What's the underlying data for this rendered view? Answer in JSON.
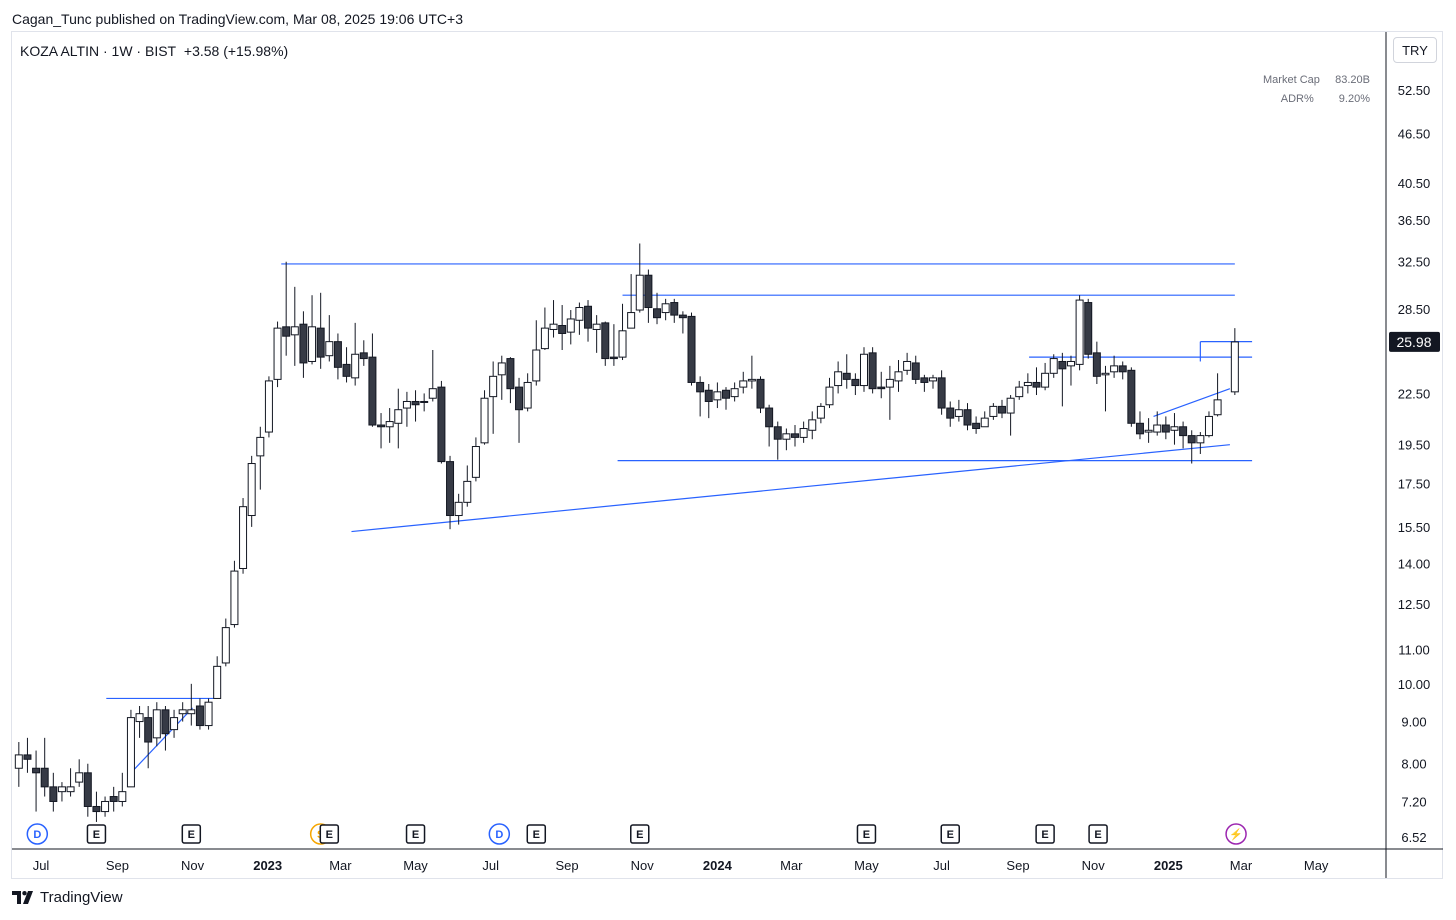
{
  "header": {
    "published": "Cagan_Tunc published on TradingView.com, Mar 08, 2025 19:06 UTC+3"
  },
  "legend": {
    "symbol": "KOZA ALTIN · 1W · BIST",
    "change": "+3.58 (+15.98%)"
  },
  "currency": "TRY",
  "stats": {
    "market_cap_label": "Market Cap",
    "market_cap_value": "83.20B",
    "adr_label": "ADR%",
    "adr_value": "9.20%"
  },
  "brand": {
    "name": "TradingView"
  },
  "colors": {
    "up_fill": "#ffffff",
    "down_fill": "#363a45",
    "candle_outline": "#131722",
    "drawing": "#2962ff",
    "price_tag_bg": "#131722"
  },
  "chart_data": {
    "type": "candlestick",
    "timeframe": "1W",
    "scale": "log",
    "y_ticks": [
      "52.50",
      "46.50",
      "40.50",
      "36.50",
      "32.50",
      "28.50",
      "22.50",
      "19.50",
      "17.50",
      "15.50",
      "14.00",
      "12.50",
      "11.00",
      "10.00",
      "9.00",
      "8.00",
      "7.20",
      "6.52"
    ],
    "last_price_label": "25.98",
    "x_ticks": [
      {
        "label": "Jul",
        "x": "2022-07-01",
        "bold": false
      },
      {
        "label": "Sep",
        "x": "2022-09-01",
        "bold": false
      },
      {
        "label": "Nov",
        "x": "2022-11-01",
        "bold": false
      },
      {
        "label": "2023",
        "x": "2023-01-01",
        "bold": true
      },
      {
        "label": "Mar",
        "x": "2023-03-01",
        "bold": false
      },
      {
        "label": "May",
        "x": "2023-05-01",
        "bold": false
      },
      {
        "label": "Jul",
        "x": "2023-07-01",
        "bold": false
      },
      {
        "label": "Sep",
        "x": "2023-09-01",
        "bold": false
      },
      {
        "label": "Nov",
        "x": "2023-11-01",
        "bold": false
      },
      {
        "label": "2024",
        "x": "2024-01-01",
        "bold": true
      },
      {
        "label": "Mar",
        "x": "2024-03-01",
        "bold": false
      },
      {
        "label": "May",
        "x": "2024-05-01",
        "bold": false
      },
      {
        "label": "Jul",
        "x": "2024-07-01",
        "bold": false
      },
      {
        "label": "Sep",
        "x": "2024-09-01",
        "bold": false
      },
      {
        "label": "Nov",
        "x": "2024-11-01",
        "bold": false
      },
      {
        "label": "2025",
        "x": "2025-01-01",
        "bold": true
      },
      {
        "label": "Mar",
        "x": "2025-03-01",
        "bold": false
      },
      {
        "label": "May",
        "x": "2025-05-01",
        "bold": false
      }
    ],
    "events": [
      {
        "type": "D",
        "date": "2022-06-28",
        "color": "#2962ff"
      },
      {
        "type": "E",
        "date": "2022-08-15",
        "color": "#131722"
      },
      {
        "type": "E",
        "date": "2022-10-31",
        "color": "#131722"
      },
      {
        "type": "S",
        "date": "2023-02-13",
        "color": "#f7a600"
      },
      {
        "type": "E",
        "date": "2023-02-20",
        "color": "#131722"
      },
      {
        "type": "E",
        "date": "2023-05-01",
        "color": "#131722"
      },
      {
        "type": "D",
        "date": "2023-07-08",
        "color": "#2962ff"
      },
      {
        "type": "E",
        "date": "2023-08-07",
        "color": "#131722"
      },
      {
        "type": "E",
        "date": "2023-10-30",
        "color": "#131722"
      },
      {
        "type": "E",
        "date": "2024-05-01",
        "color": "#131722"
      },
      {
        "type": "E",
        "date": "2024-07-08",
        "color": "#131722"
      },
      {
        "type": "E",
        "date": "2024-09-23",
        "color": "#131722"
      },
      {
        "type": "E",
        "date": "2024-11-05",
        "color": "#131722"
      },
      {
        "type": "⚡",
        "date": "2025-02-25",
        "color": "#9c27b0"
      }
    ],
    "candles": [
      [
        "2022-06-13",
        7.9,
        8.2,
        8.5,
        7.5
      ],
      [
        "2022-06-20",
        8.2,
        8.1,
        8.6,
        7.8
      ],
      [
        "2022-06-27",
        7.9,
        7.8,
        8.3,
        7.0
      ],
      [
        "2022-07-04",
        7.9,
        7.5,
        8.6,
        7.3
      ],
      [
        "2022-07-11",
        7.5,
        7.2,
        7.8,
        7.0
      ],
      [
        "2022-07-18",
        7.4,
        7.5,
        7.6,
        7.2
      ],
      [
        "2022-07-25",
        7.4,
        7.5,
        7.9,
        7.3
      ],
      [
        "2022-08-01",
        7.6,
        7.8,
        8.1,
        7.5
      ],
      [
        "2022-08-08",
        7.8,
        7.1,
        8.0,
        6.9
      ],
      [
        "2022-08-15",
        7.1,
        7.0,
        7.4,
        6.8
      ],
      [
        "2022-08-22",
        7.0,
        7.2,
        7.3,
        6.9
      ],
      [
        "2022-08-29",
        7.3,
        7.2,
        7.5,
        7.0
      ],
      [
        "2022-09-05",
        7.2,
        7.4,
        7.8,
        7.1
      ],
      [
        "2022-09-12",
        7.5,
        9.1,
        9.3,
        7.5
      ],
      [
        "2022-09-19",
        9.0,
        9.2,
        9.4,
        8.6
      ],
      [
        "2022-09-26",
        9.1,
        8.5,
        9.4,
        7.9
      ],
      [
        "2022-10-03",
        8.6,
        9.3,
        9.5,
        8.4
      ],
      [
        "2022-10-10",
        9.3,
        8.7,
        9.4,
        8.3
      ],
      [
        "2022-10-17",
        8.8,
        9.1,
        9.3,
        8.6
      ],
      [
        "2022-10-24",
        9.2,
        9.3,
        9.5,
        9.0
      ],
      [
        "2022-10-31",
        9.2,
        9.3,
        10.0,
        8.9
      ],
      [
        "2022-11-07",
        9.4,
        8.9,
        9.6,
        8.8
      ],
      [
        "2022-11-14",
        8.9,
        9.5,
        9.6,
        8.8
      ],
      [
        "2022-11-21",
        9.6,
        10.5,
        10.8,
        9.6
      ],
      [
        "2022-11-28",
        10.6,
        11.7,
        12.0,
        10.5
      ],
      [
        "2022-12-05",
        11.8,
        13.7,
        14.1,
        11.7
      ],
      [
        "2022-12-12",
        13.8,
        16.4,
        16.8,
        13.6
      ],
      [
        "2022-12-19",
        16.0,
        18.5,
        18.9,
        15.5
      ],
      [
        "2022-12-26",
        18.9,
        19.9,
        20.5,
        17.2
      ],
      [
        "2023-01-02",
        20.2,
        23.3,
        23.6,
        19.9
      ],
      [
        "2023-01-09",
        23.4,
        27.0,
        27.5,
        22.9
      ],
      [
        "2023-01-16",
        27.1,
        26.4,
        32.5,
        25.0
      ],
      [
        "2023-01-23",
        26.5,
        27.1,
        30.3,
        24.3
      ],
      [
        "2023-01-30",
        27.3,
        24.5,
        28.3,
        23.5
      ],
      [
        "2023-02-06",
        24.6,
        27.1,
        29.6,
        24.4
      ],
      [
        "2023-02-13",
        27.0,
        24.9,
        29.8,
        24.1
      ],
      [
        "2023-02-20",
        25.0,
        26.0,
        28.0,
        24.6
      ],
      [
        "2023-02-27",
        26.0,
        24.2,
        26.6,
        23.4
      ],
      [
        "2023-03-06",
        24.4,
        23.6,
        25.6,
        23.2
      ],
      [
        "2023-03-13",
        23.5,
        25.1,
        27.4,
        23.0
      ],
      [
        "2023-03-20",
        25.2,
        24.8,
        26.1,
        24.3
      ],
      [
        "2023-03-27",
        24.9,
        20.6,
        26.6,
        20.5
      ],
      [
        "2023-04-03",
        20.6,
        20.5,
        21.3,
        19.3
      ],
      [
        "2023-04-10",
        20.5,
        20.8,
        21.6,
        19.6
      ],
      [
        "2023-04-17",
        20.7,
        21.5,
        22.8,
        19.3
      ],
      [
        "2023-04-24",
        21.6,
        22.0,
        22.6,
        20.5
      ],
      [
        "2023-05-01",
        22.0,
        21.8,
        22.7,
        20.8
      ],
      [
        "2023-05-08",
        22.0,
        22.0,
        22.5,
        21.4
      ],
      [
        "2023-05-15",
        22.2,
        22.8,
        25.4,
        22.0
      ],
      [
        "2023-05-22",
        22.9,
        18.6,
        23.3,
        18.5
      ],
      [
        "2023-05-29",
        18.6,
        16.0,
        18.9,
        15.4
      ],
      [
        "2023-06-05",
        16.0,
        16.6,
        17.0,
        15.6
      ],
      [
        "2023-06-12",
        16.6,
        17.6,
        18.4,
        16.4
      ],
      [
        "2023-06-19",
        17.8,
        19.4,
        19.9,
        17.6
      ],
      [
        "2023-06-26",
        19.6,
        22.2,
        22.7,
        19.5
      ],
      [
        "2023-07-03",
        22.3,
        23.6,
        24.6,
        20.1
      ],
      [
        "2023-07-10",
        23.7,
        24.5,
        25.0,
        22.1
      ],
      [
        "2023-07-17",
        24.8,
        22.8,
        24.9,
        21.9
      ],
      [
        "2023-07-24",
        22.9,
        21.5,
        23.5,
        19.6
      ],
      [
        "2023-07-31",
        21.6,
        23.2,
        23.8,
        21.4
      ],
      [
        "2023-08-07",
        23.3,
        25.4,
        27.6,
        23.0
      ],
      [
        "2023-08-14",
        25.5,
        27.0,
        28.6,
        25.4
      ],
      [
        "2023-08-21",
        26.9,
        27.3,
        29.2,
        26.3
      ],
      [
        "2023-08-28",
        27.2,
        26.6,
        28.8,
        25.4
      ],
      [
        "2023-09-04",
        26.7,
        27.7,
        28.4,
        25.8
      ],
      [
        "2023-09-11",
        27.6,
        28.6,
        29.0,
        26.5
      ],
      [
        "2023-09-18",
        28.7,
        27.0,
        29.2,
        26.0
      ],
      [
        "2023-09-25",
        26.9,
        27.3,
        28.0,
        25.2
      ],
      [
        "2023-10-02",
        27.4,
        24.8,
        27.5,
        24.3
      ],
      [
        "2023-10-09",
        24.9,
        24.8,
        27.3,
        24.3
      ],
      [
        "2023-10-16",
        24.9,
        26.8,
        28.9,
        24.7
      ],
      [
        "2023-10-23",
        27.0,
        28.2,
        31.4,
        27.0
      ],
      [
        "2023-10-30",
        28.4,
        31.3,
        34.2,
        28.2
      ],
      [
        "2023-11-06",
        31.3,
        28.6,
        31.8,
        27.4
      ],
      [
        "2023-11-13",
        28.5,
        27.8,
        29.8,
        27.3
      ],
      [
        "2023-11-20",
        28.2,
        28.9,
        29.3,
        27.6
      ],
      [
        "2023-11-27",
        29.0,
        28.0,
        29.3,
        27.4
      ],
      [
        "2023-12-04",
        28.0,
        27.8,
        28.3,
        26.6
      ],
      [
        "2023-12-11",
        27.9,
        23.2,
        28.2,
        23.0
      ],
      [
        "2023-12-18",
        23.2,
        22.6,
        23.6,
        21.1
      ],
      [
        "2023-12-25",
        22.7,
        22.0,
        23.1,
        21.0
      ],
      [
        "2024-01-01",
        22.1,
        22.6,
        23.2,
        21.6
      ],
      [
        "2024-01-08",
        22.7,
        22.2,
        22.9,
        21.5
      ],
      [
        "2024-01-15",
        22.3,
        22.8,
        23.2,
        22.0
      ],
      [
        "2024-01-22",
        22.9,
        23.3,
        23.9,
        22.5
      ],
      [
        "2024-01-29",
        23.3,
        23.4,
        25.0,
        22.8
      ],
      [
        "2024-02-05",
        23.4,
        21.6,
        23.6,
        21.3
      ],
      [
        "2024-02-12",
        21.6,
        20.5,
        21.8,
        19.4
      ],
      [
        "2024-02-19",
        20.5,
        19.8,
        20.8,
        18.7
      ],
      [
        "2024-02-26",
        19.8,
        20.1,
        20.4,
        19.2
      ],
      [
        "2024-03-04",
        20.1,
        19.9,
        20.6,
        19.4
      ],
      [
        "2024-03-11",
        19.9,
        20.4,
        20.8,
        19.6
      ],
      [
        "2024-03-18",
        20.3,
        20.9,
        21.4,
        19.8
      ],
      [
        "2024-03-25",
        21.0,
        21.7,
        21.9,
        20.7
      ],
      [
        "2024-04-01",
        21.8,
        22.9,
        23.5,
        21.6
      ],
      [
        "2024-04-08",
        23.0,
        23.9,
        24.6,
        22.5
      ],
      [
        "2024-04-15",
        23.8,
        23.4,
        25.1,
        22.8
      ],
      [
        "2024-04-22",
        23.4,
        23.0,
        23.8,
        22.4
      ],
      [
        "2024-04-29",
        23.0,
        25.1,
        25.6,
        22.6
      ],
      [
        "2024-05-06",
        25.2,
        22.8,
        25.6,
        22.5
      ],
      [
        "2024-05-13",
        22.9,
        22.8,
        23.9,
        22.2
      ],
      [
        "2024-05-20",
        22.9,
        23.4,
        24.3,
        20.9
      ],
      [
        "2024-05-27",
        23.3,
        23.9,
        24.7,
        22.6
      ],
      [
        "2024-06-03",
        24.0,
        24.6,
        25.2,
        23.7
      ],
      [
        "2024-06-10",
        24.5,
        23.4,
        25.0,
        23.1
      ],
      [
        "2024-06-17",
        23.5,
        23.2,
        23.7,
        22.6
      ],
      [
        "2024-06-24",
        23.3,
        23.5,
        23.7,
        22.8
      ],
      [
        "2024-07-01",
        23.5,
        21.6,
        24.0,
        21.2
      ],
      [
        "2024-07-08",
        21.6,
        21.0,
        22.0,
        20.5
      ],
      [
        "2024-07-15",
        21.1,
        21.5,
        22.1,
        20.8
      ],
      [
        "2024-07-22",
        21.5,
        20.6,
        21.9,
        20.3
      ],
      [
        "2024-07-29",
        20.7,
        20.4,
        21.1,
        20.1
      ],
      [
        "2024-08-05",
        20.5,
        21.0,
        21.4,
        20.6
      ],
      [
        "2024-08-12",
        21.1,
        21.7,
        21.9,
        20.9
      ],
      [
        "2024-08-19",
        21.7,
        21.3,
        22.1,
        21.0
      ],
      [
        "2024-08-26",
        21.3,
        22.2,
        22.4,
        20.0
      ],
      [
        "2024-09-02",
        22.3,
        22.9,
        23.3,
        22.1
      ],
      [
        "2024-09-09",
        23.0,
        23.2,
        23.8,
        22.5
      ],
      [
        "2024-09-16",
        23.2,
        22.9,
        24.2,
        22.4
      ],
      [
        "2024-09-23",
        22.9,
        23.8,
        24.5,
        22.7
      ],
      [
        "2024-09-30",
        23.8,
        24.8,
        25.1,
        23.5
      ],
      [
        "2024-10-07",
        24.6,
        24.1,
        25.2,
        21.7
      ],
      [
        "2024-10-14",
        24.3,
        24.6,
        25.0,
        23.0
      ],
      [
        "2024-10-21",
        24.4,
        29.2,
        29.6,
        24.0
      ],
      [
        "2024-10-28",
        29.0,
        25.1,
        29.3,
        24.8
      ],
      [
        "2024-11-04",
        25.2,
        23.6,
        26.0,
        23.1
      ],
      [
        "2024-11-11",
        23.7,
        23.8,
        24.3,
        21.4
      ],
      [
        "2024-11-18",
        23.9,
        24.3,
        25.0,
        23.5
      ],
      [
        "2024-11-25",
        24.3,
        23.9,
        24.6,
        23.4
      ],
      [
        "2024-12-02",
        24.0,
        20.7,
        24.2,
        20.5
      ],
      [
        "2024-12-09",
        20.7,
        20.1,
        21.4,
        19.8
      ],
      [
        "2024-12-16",
        20.2,
        20.3,
        21.0,
        19.6
      ],
      [
        "2024-12-23",
        20.2,
        20.6,
        21.4,
        20.0
      ],
      [
        "2024-12-30",
        20.6,
        20.2,
        21.1,
        19.8
      ],
      [
        "2025-01-06",
        20.3,
        20.5,
        21.3,
        19.5
      ],
      [
        "2025-01-13",
        20.5,
        20.0,
        20.8,
        19.3
      ],
      [
        "2025-01-20",
        20.0,
        19.6,
        20.3,
        18.5
      ],
      [
        "2025-01-27",
        19.6,
        20.0,
        20.2,
        19.0
      ],
      [
        "2025-02-03",
        20.0,
        21.1,
        21.4,
        19.9
      ],
      [
        "2025-02-10",
        21.2,
        22.1,
        23.8,
        21.1
      ]
    ]
  }
}
